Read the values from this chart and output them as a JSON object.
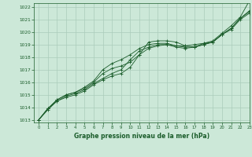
{
  "xlabel": "Graphe pression niveau de la mer (hPa)",
  "bg_color": "#cce8d8",
  "grid_color": "#aaccba",
  "line_color": "#1a5c2a",
  "xlim": [
    -0.5,
    23
  ],
  "ylim": [
    1012.8,
    1022.3
  ],
  "yticks": [
    1013,
    1014,
    1015,
    1016,
    1017,
    1018,
    1019,
    1020,
    1021,
    1022
  ],
  "xticks": [
    0,
    1,
    2,
    3,
    4,
    5,
    6,
    7,
    8,
    9,
    10,
    11,
    12,
    13,
    14,
    15,
    16,
    17,
    18,
    19,
    20,
    21,
    22,
    23
  ],
  "series": [
    [
      1013.0,
      1013.8,
      1014.5,
      1014.8,
      1015.0,
      1015.3,
      1015.8,
      1016.2,
      1016.5,
      1016.7,
      1017.2,
      1018.2,
      1019.2,
      1019.3,
      1019.3,
      1019.2,
      1018.9,
      1018.8,
      1019.1,
      1019.2,
      1019.8,
      1020.2,
      1021.0,
      1021.5
    ],
    [
      1013.0,
      1013.9,
      1014.5,
      1014.9,
      1015.1,
      1015.4,
      1015.9,
      1016.3,
      1016.7,
      1017.0,
      1017.8,
      1018.5,
      1018.8,
      1019.0,
      1019.0,
      1018.9,
      1018.8,
      1018.8,
      1019.0,
      1019.2,
      1019.8,
      1020.3,
      1021.1,
      1021.6
    ],
    [
      1013.0,
      1013.9,
      1014.6,
      1015.0,
      1015.2,
      1015.5,
      1016.0,
      1016.7,
      1017.1,
      1017.3,
      1017.6,
      1018.2,
      1018.7,
      1018.9,
      1019.0,
      1018.8,
      1018.7,
      1018.8,
      1019.0,
      1019.2,
      1019.8,
      1020.3,
      1021.1,
      1021.7
    ],
    [
      1013.0,
      1013.9,
      1014.6,
      1015.0,
      1015.2,
      1015.6,
      1016.1,
      1017.0,
      1017.5,
      1017.8,
      1018.2,
      1018.7,
      1019.0,
      1019.1,
      1019.1,
      1018.9,
      1018.9,
      1019.0,
      1019.1,
      1019.3,
      1019.9,
      1020.5,
      1021.2,
      1022.5
    ]
  ]
}
